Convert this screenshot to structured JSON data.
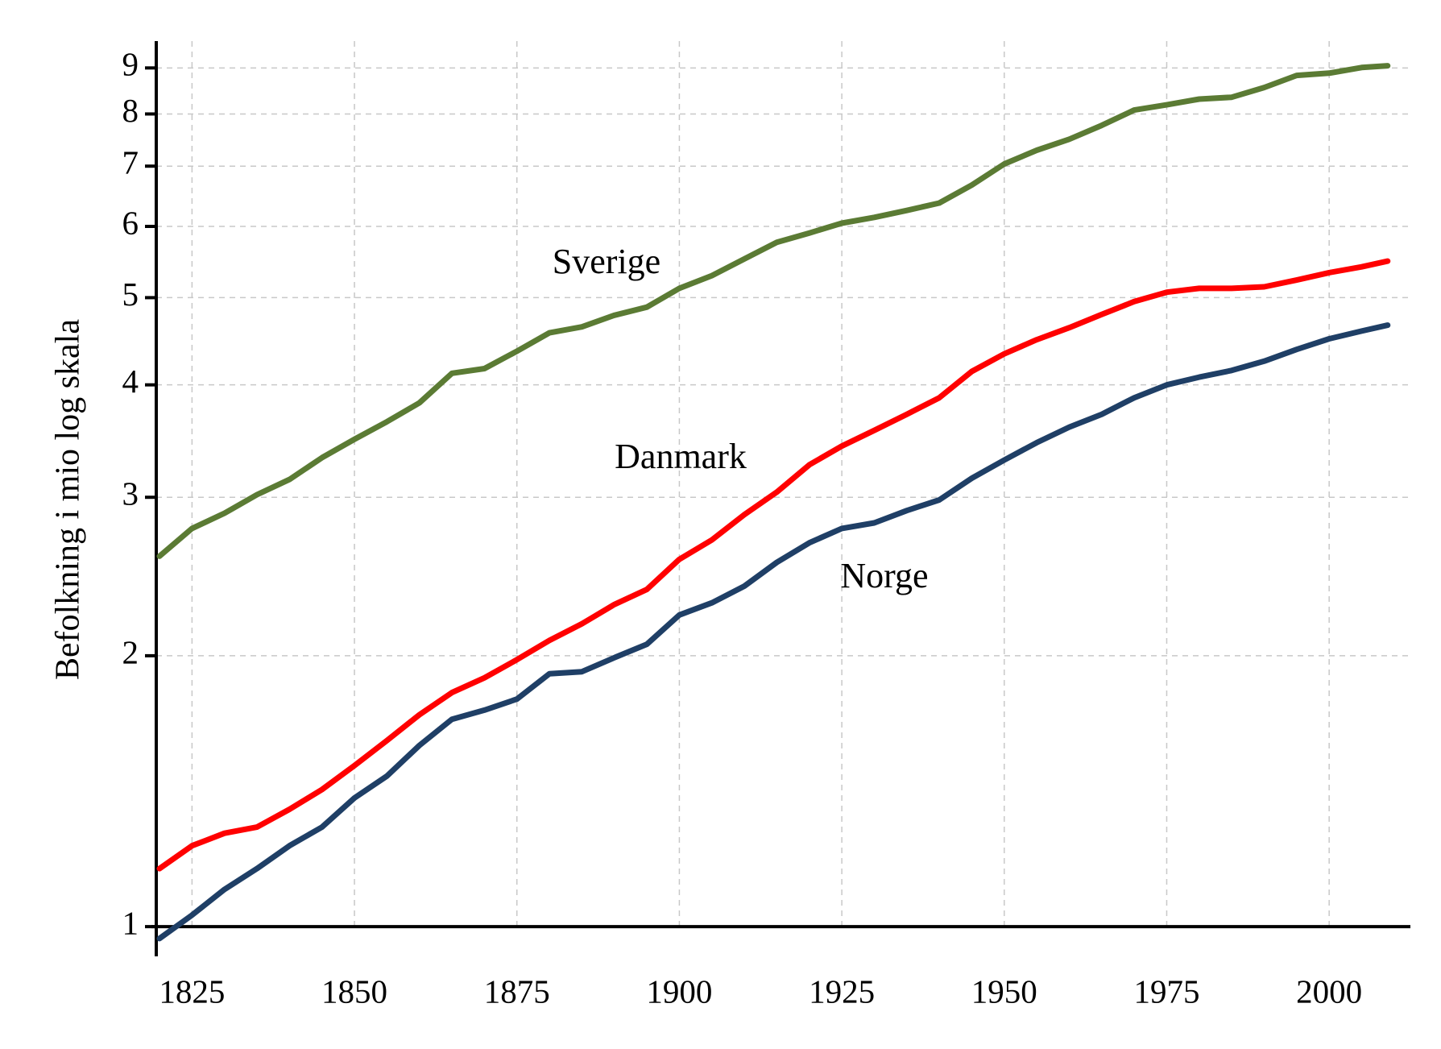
{
  "chart_data": {
    "type": "line",
    "y_label": "Befolkning i mio log skala",
    "log_y": true,
    "grid": true,
    "xlim": [
      1819.5,
      2012.5
    ],
    "ylim": [
      0.95,
      9.64
    ],
    "xticks": [
      1825,
      1850,
      1875,
      1900,
      1925,
      1950,
      1975,
      2000
    ],
    "yticks": [
      1,
      2,
      3,
      4,
      5,
      6,
      7,
      8,
      9
    ],
    "x": [
      1820,
      1825,
      1830,
      1835,
      1840,
      1845,
      1850,
      1855,
      1860,
      1865,
      1870,
      1875,
      1880,
      1885,
      1890,
      1895,
      1900,
      1905,
      1910,
      1915,
      1920,
      1925,
      1930,
      1935,
      1940,
      1945,
      1950,
      1955,
      1960,
      1965,
      1970,
      1975,
      1980,
      1985,
      1990,
      1995,
      2000,
      2005,
      2009
    ],
    "series": [
      {
        "name": "Sverige",
        "color": "#5b7b34",
        "values": [
          2.58,
          2.77,
          2.88,
          3.02,
          3.14,
          3.32,
          3.48,
          3.64,
          3.82,
          4.12,
          4.17,
          4.36,
          4.57,
          4.64,
          4.78,
          4.88,
          5.12,
          5.29,
          5.52,
          5.76,
          5.9,
          6.05,
          6.14,
          6.25,
          6.37,
          6.67,
          7.04,
          7.29,
          7.5,
          7.77,
          8.08,
          8.19,
          8.31,
          8.35,
          8.56,
          8.83,
          8.88,
          9.01,
          9.05
        ]
      },
      {
        "name": "Danmark",
        "color": "#ff0000",
        "values": [
          1.16,
          1.23,
          1.27,
          1.29,
          1.35,
          1.42,
          1.51,
          1.61,
          1.72,
          1.82,
          1.89,
          1.98,
          2.08,
          2.17,
          2.28,
          2.37,
          2.56,
          2.69,
          2.87,
          3.04,
          3.26,
          3.42,
          3.56,
          3.71,
          3.87,
          4.14,
          4.33,
          4.49,
          4.63,
          4.79,
          4.95,
          5.07,
          5.12,
          5.12,
          5.14,
          5.23,
          5.33,
          5.41,
          5.49
        ]
      },
      {
        "name": "Norge",
        "color": "#1f3f66",
        "values": [
          0.97,
          1.03,
          1.1,
          1.16,
          1.23,
          1.29,
          1.39,
          1.47,
          1.59,
          1.7,
          1.74,
          1.79,
          1.91,
          1.92,
          1.99,
          2.06,
          2.22,
          2.29,
          2.39,
          2.54,
          2.67,
          2.77,
          2.81,
          2.9,
          2.98,
          3.15,
          3.3,
          3.45,
          3.59,
          3.71,
          3.87,
          4.0,
          4.08,
          4.15,
          4.25,
          4.38,
          4.5,
          4.59,
          4.66
        ]
      }
    ]
  }
}
